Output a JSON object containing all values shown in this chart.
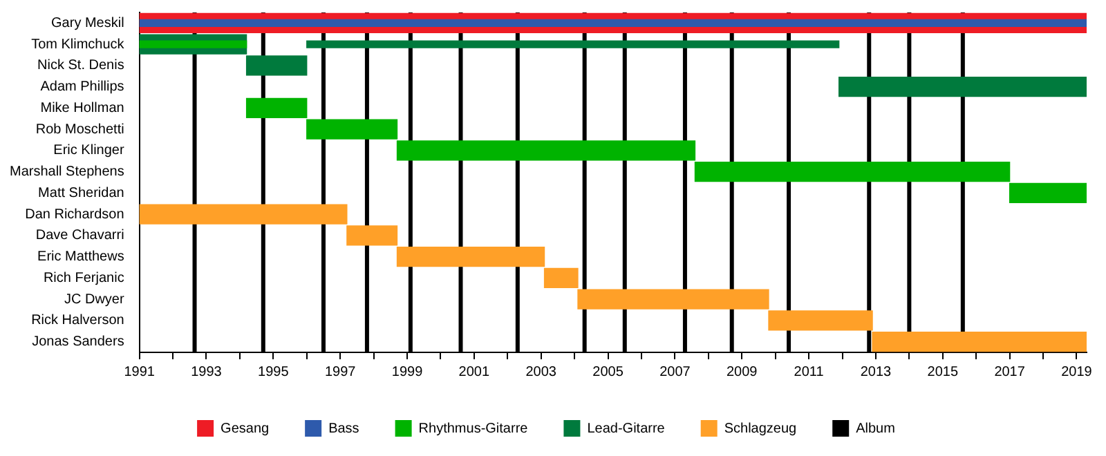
{
  "chart_data": {
    "type": "bar",
    "orientation": "horizontal",
    "categories": [
      "Gary Meskil",
      "Tom Klimchuck",
      "Nick St. Denis",
      "Adam Phillips",
      "Mike Hollman",
      "Rob Moschetti",
      "Eric Klinger",
      "Marshall Stephens",
      "Matt Sheridan",
      "Dan Richardson",
      "Dave Chavarri",
      "Eric Matthews",
      "Rich Ferjanic",
      "JC Dwyer",
      "Rick Halverson",
      "Jonas Sanders"
    ],
    "series": [
      {
        "name": "Gesang",
        "color": "#ee1c25",
        "base": [
          1991,
          null,
          null,
          null,
          null,
          null,
          null,
          null,
          null,
          null,
          null,
          null,
          null,
          null,
          null,
          null
        ],
        "values": [
          28.3,
          null,
          null,
          null,
          null,
          null,
          null,
          null,
          null,
          null,
          null,
          null,
          null,
          null,
          null,
          null
        ]
      },
      {
        "name": "Bass",
        "color": "#2e5aac",
        "base": [
          1991,
          null,
          null,
          null,
          null,
          null,
          null,
          null,
          null,
          null,
          null,
          null,
          null,
          null,
          null,
          null
        ],
        "values": [
          28.3,
          null,
          null,
          null,
          null,
          null,
          null,
          null,
          null,
          null,
          null,
          null,
          null,
          null,
          null,
          null
        ]
      },
      {
        "name": "Rhythmus-Gitarre",
        "color": "#00b300",
        "base": [
          null,
          null,
          null,
          null,
          1994.2,
          1996.0,
          1998.7,
          2007.6,
          2017.0,
          null,
          null,
          null,
          null,
          null,
          null,
          null
        ],
        "values": [
          null,
          null,
          null,
          null,
          1.8,
          2.7,
          8.9,
          9.4,
          2.3,
          null,
          null,
          null,
          null,
          null,
          null,
          null
        ]
      },
      {
        "name": "Lead-Gitarre",
        "color": "#007a3d",
        "base": [
          null,
          1991,
          1994.2,
          2011.9,
          null,
          null,
          null,
          null,
          null,
          null,
          null,
          null,
          null,
          null,
          null,
          null
        ],
        "values": [
          null,
          3.2,
          1.8,
          7.4,
          null,
          null,
          null,
          null,
          null,
          null,
          null,
          null,
          null,
          null,
          null,
          null
        ]
      },
      {
        "color": "#007a3d",
        "base": [
          null,
          1996.0,
          null,
          null,
          null,
          null,
          null,
          null,
          null,
          null,
          null,
          null,
          null,
          null,
          null,
          null
        ],
        "values": [
          null,
          15.9,
          null,
          null,
          null,
          null,
          null,
          null,
          null,
          null,
          null,
          null,
          null,
          null,
          null,
          null
        ]
      },
      {
        "color": "#00b300",
        "base": [
          null,
          1991,
          null,
          null,
          null,
          null,
          null,
          null,
          null,
          null,
          null,
          null,
          null,
          null,
          null,
          null
        ],
        "values": [
          null,
          3.2,
          null,
          null,
          null,
          null,
          null,
          null,
          null,
          null,
          null,
          null,
          null,
          null,
          null,
          null
        ]
      },
      {
        "name": "Schlagzeug",
        "color": "#ffa028",
        "base": [
          null,
          null,
          null,
          null,
          null,
          null,
          null,
          null,
          null,
          1991,
          1997.2,
          1998.7,
          2003.1,
          2004.1,
          2009.8,
          2012.9
        ],
        "values": [
          null,
          null,
          null,
          null,
          null,
          null,
          null,
          null,
          null,
          6.2,
          1.5,
          4.4,
          1.0,
          5.7,
          3.1,
          6.4
        ]
      }
    ],
    "xlim": [
      1991,
      2019.3
    ],
    "xticks": [
      1991,
      {
        "value": 1992,
        "label": null
      },
      1993,
      {
        "value": 1994,
        "label": null
      },
      1995,
      {
        "value": 1996,
        "label": null
      },
      1997,
      {
        "value": 1998,
        "label": null
      },
      1999,
      {
        "value": 2000,
        "label": null
      },
      2001,
      {
        "value": 2002,
        "label": null
      },
      2003,
      {
        "value": 2004,
        "label": null
      },
      2005,
      {
        "value": 2006,
        "label": null
      },
      2007,
      {
        "value": 2008,
        "label": null
      },
      2009,
      {
        "value": 2010,
        "label": null
      },
      2011,
      {
        "value": 2012,
        "label": null
      },
      2013,
      {
        "value": 2014,
        "label": null
      },
      2015,
      {
        "value": 2016,
        "label": null
      },
      2017,
      {
        "value": 2018,
        "label": null
      },
      2019
    ],
    "ref_lines": [
      {
        "axis": "x",
        "value": 1992.65,
        "label": "Album",
        "color": "#000000"
      },
      {
        "axis": "x",
        "value": 1994.7,
        "color": "#000000"
      },
      {
        "axis": "x",
        "value": 1996.5,
        "color": "#000000"
      },
      {
        "axis": "x",
        "value": 1997.8,
        "color": "#000000"
      },
      {
        "axis": "x",
        "value": 1999.1,
        "color": "#000000"
      },
      {
        "axis": "x",
        "value": 2000.6,
        "color": "#000000"
      },
      {
        "axis": "x",
        "value": 2002.3,
        "color": "#000000"
      },
      {
        "axis": "x",
        "value": 2004.3,
        "color": "#000000"
      },
      {
        "axis": "x",
        "value": 2005.5,
        "color": "#000000"
      },
      {
        "axis": "x",
        "value": 2007.3,
        "color": "#000000"
      },
      {
        "axis": "x",
        "value": 2008.7,
        "color": "#000000"
      },
      {
        "axis": "x",
        "value": 2010.4,
        "color": "#000000"
      },
      {
        "axis": "x",
        "value": 2012.8,
        "color": "#000000"
      },
      {
        "axis": "x",
        "value": 2014.0,
        "color": "#000000"
      },
      {
        "axis": "x",
        "value": 2015.6,
        "color": "#000000"
      }
    ],
    "grid": false,
    "legend": "bottom"
  }
}
